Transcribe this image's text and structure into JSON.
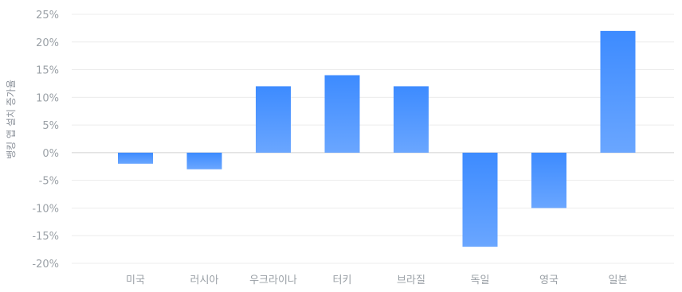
{
  "chart_data": {
    "type": "bar",
    "title": "",
    "xlabel": "",
    "ylabel": "뱅킹 앱 설치 증가율",
    "categories": [
      "미국",
      "러시아",
      "우크라이나",
      "터키",
      "브라질",
      "독일",
      "영국",
      "일본"
    ],
    "values": [
      -2,
      -3,
      12,
      14,
      12,
      -17,
      -10,
      22
    ],
    "unit": "%",
    "ylim": [
      -20,
      25
    ],
    "yticks": [
      25,
      20,
      15,
      10,
      5,
      0,
      -5,
      -10,
      -15,
      -20
    ],
    "ytick_labels": [
      "25%",
      "20%",
      "15%",
      "10%",
      "5%",
      "0%",
      "-5%",
      "-10%",
      "-15%",
      "-20%"
    ],
    "grid": true,
    "legend": "none",
    "colors": {
      "bar_top": "#3d8bff",
      "bar_bottom": "#6aa6ff",
      "grid": "#ececec",
      "zero_line": "#d0d0d0",
      "tick_text": "#9aa0a6",
      "axis_title": "#8a9099"
    }
  }
}
